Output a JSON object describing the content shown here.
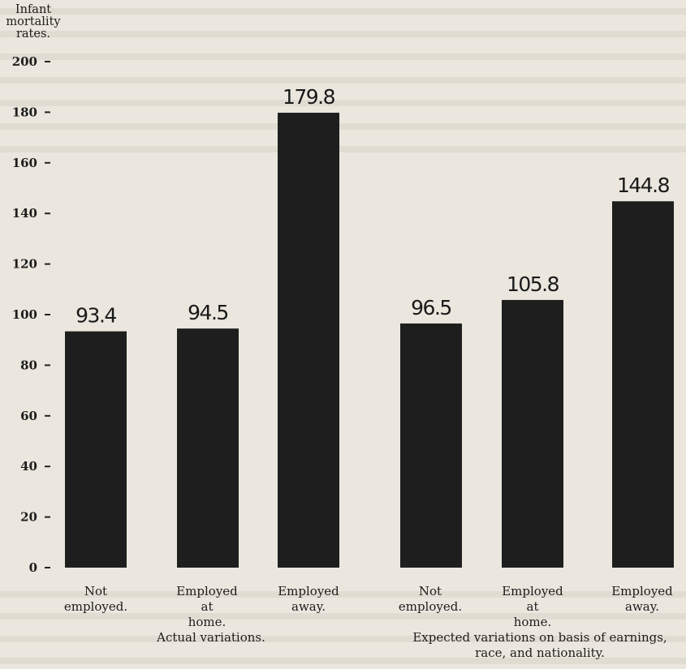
{
  "chart_data": {
    "type": "bar",
    "title": "",
    "ylabel": "Infant mortality rates.",
    "ylabel_lines": [
      "Infant",
      "mortality",
      "rates."
    ],
    "ylim": [
      0,
      200
    ],
    "yticks": [
      "0",
      "20",
      "40",
      "60",
      "80",
      "100",
      "120",
      "140",
      "160",
      "180",
      "200"
    ],
    "bar_color": "#1e1e1e",
    "groups": [
      {
        "caption": "Actual variations.",
        "categories": [
          {
            "lines": [
              "Not",
              "employed."
            ],
            "value": 93.4,
            "label": "93.4"
          },
          {
            "lines": [
              "Employed",
              "at",
              "home."
            ],
            "value": 94.5,
            "label": "94.5"
          },
          {
            "lines": [
              "Employed",
              "away."
            ],
            "value": 179.8,
            "label": "179.8"
          }
        ]
      },
      {
        "caption_lines": [
          "Expected variations on basis of earnings,",
          "race, and nationality."
        ],
        "categories": [
          {
            "lines": [
              "Not",
              "employed."
            ],
            "value": 96.5,
            "label": "96.5"
          },
          {
            "lines": [
              "Employed",
              "at",
              "home."
            ],
            "value": 105.8,
            "label": "105.8"
          },
          {
            "lines": [
              "Employed",
              "away."
            ],
            "value": 144.8,
            "label": "144.8"
          }
        ]
      }
    ]
  }
}
